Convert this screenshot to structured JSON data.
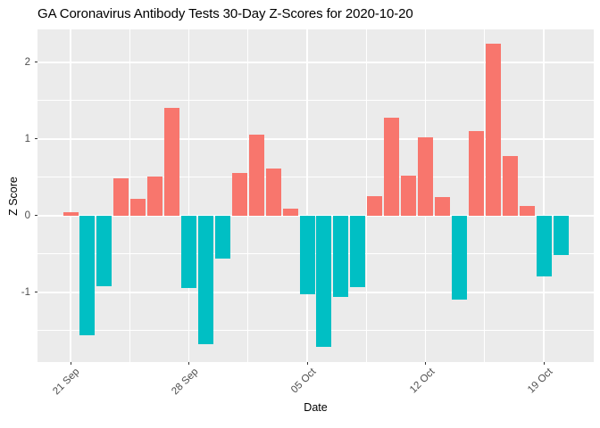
{
  "title": "GA Coronavirus Antibody Tests 30-Day Z-Scores for 2020-10-20",
  "chart_data": {
    "type": "bar",
    "title": "GA Coronavirus Antibody Tests 30-Day Z-Scores for 2020-10-20",
    "xlabel": "Date",
    "ylabel": "Z Score",
    "x": [
      "2020-09-21",
      "2020-09-22",
      "2020-09-23",
      "2020-09-24",
      "2020-09-25",
      "2020-09-26",
      "2020-09-27",
      "2020-09-28",
      "2020-09-29",
      "2020-09-30",
      "2020-10-01",
      "2020-10-02",
      "2020-10-03",
      "2020-10-04",
      "2020-10-05",
      "2020-10-06",
      "2020-10-07",
      "2020-10-08",
      "2020-10-09",
      "2020-10-10",
      "2020-10-11",
      "2020-10-12",
      "2020-10-13",
      "2020-10-14",
      "2020-10-15",
      "2020-10-16",
      "2020-10-17",
      "2020-10-18",
      "2020-10-19",
      "2020-10-20"
    ],
    "values": [
      0.04,
      -1.56,
      -0.92,
      0.49,
      0.22,
      0.51,
      1.41,
      -0.94,
      -1.68,
      -0.56,
      0.56,
      1.06,
      0.61,
      0.09,
      -1.03,
      -1.71,
      -1.06,
      -0.93,
      0.26,
      1.28,
      0.52,
      1.02,
      0.24,
      -1.1,
      1.1,
      2.24,
      0.78,
      0.13,
      -0.79,
      -0.51
    ],
    "x_ticks": [
      {
        "index": 0,
        "label": "21 Sep"
      },
      {
        "index": 7,
        "label": "28 Sep"
      },
      {
        "index": 14,
        "label": "05 Oct"
      },
      {
        "index": 21,
        "label": "12 Oct"
      },
      {
        "index": 28,
        "label": "19 Oct"
      }
    ],
    "y_ticks": [
      {
        "value": 2,
        "label": "2"
      },
      {
        "value": 1,
        "label": "1"
      },
      {
        "value": 0,
        "label": "0"
      },
      {
        "value": -1,
        "label": "-1"
      }
    ],
    "y_minor_ticks": [
      1.5,
      0.5,
      -0.5,
      -1.5
    ],
    "ylim": [
      -1.91,
      2.43
    ],
    "grid": true,
    "legend_position": "none",
    "colors": {
      "positive_bar": "#F8766D",
      "negative_bar": "#00BFC4",
      "panel_background": "#EBEBEB",
      "gridline": "#FFFFFF",
      "tick_label": "#4D4D4D",
      "tick_mark": "#333333",
      "title_text": "#000000"
    }
  }
}
